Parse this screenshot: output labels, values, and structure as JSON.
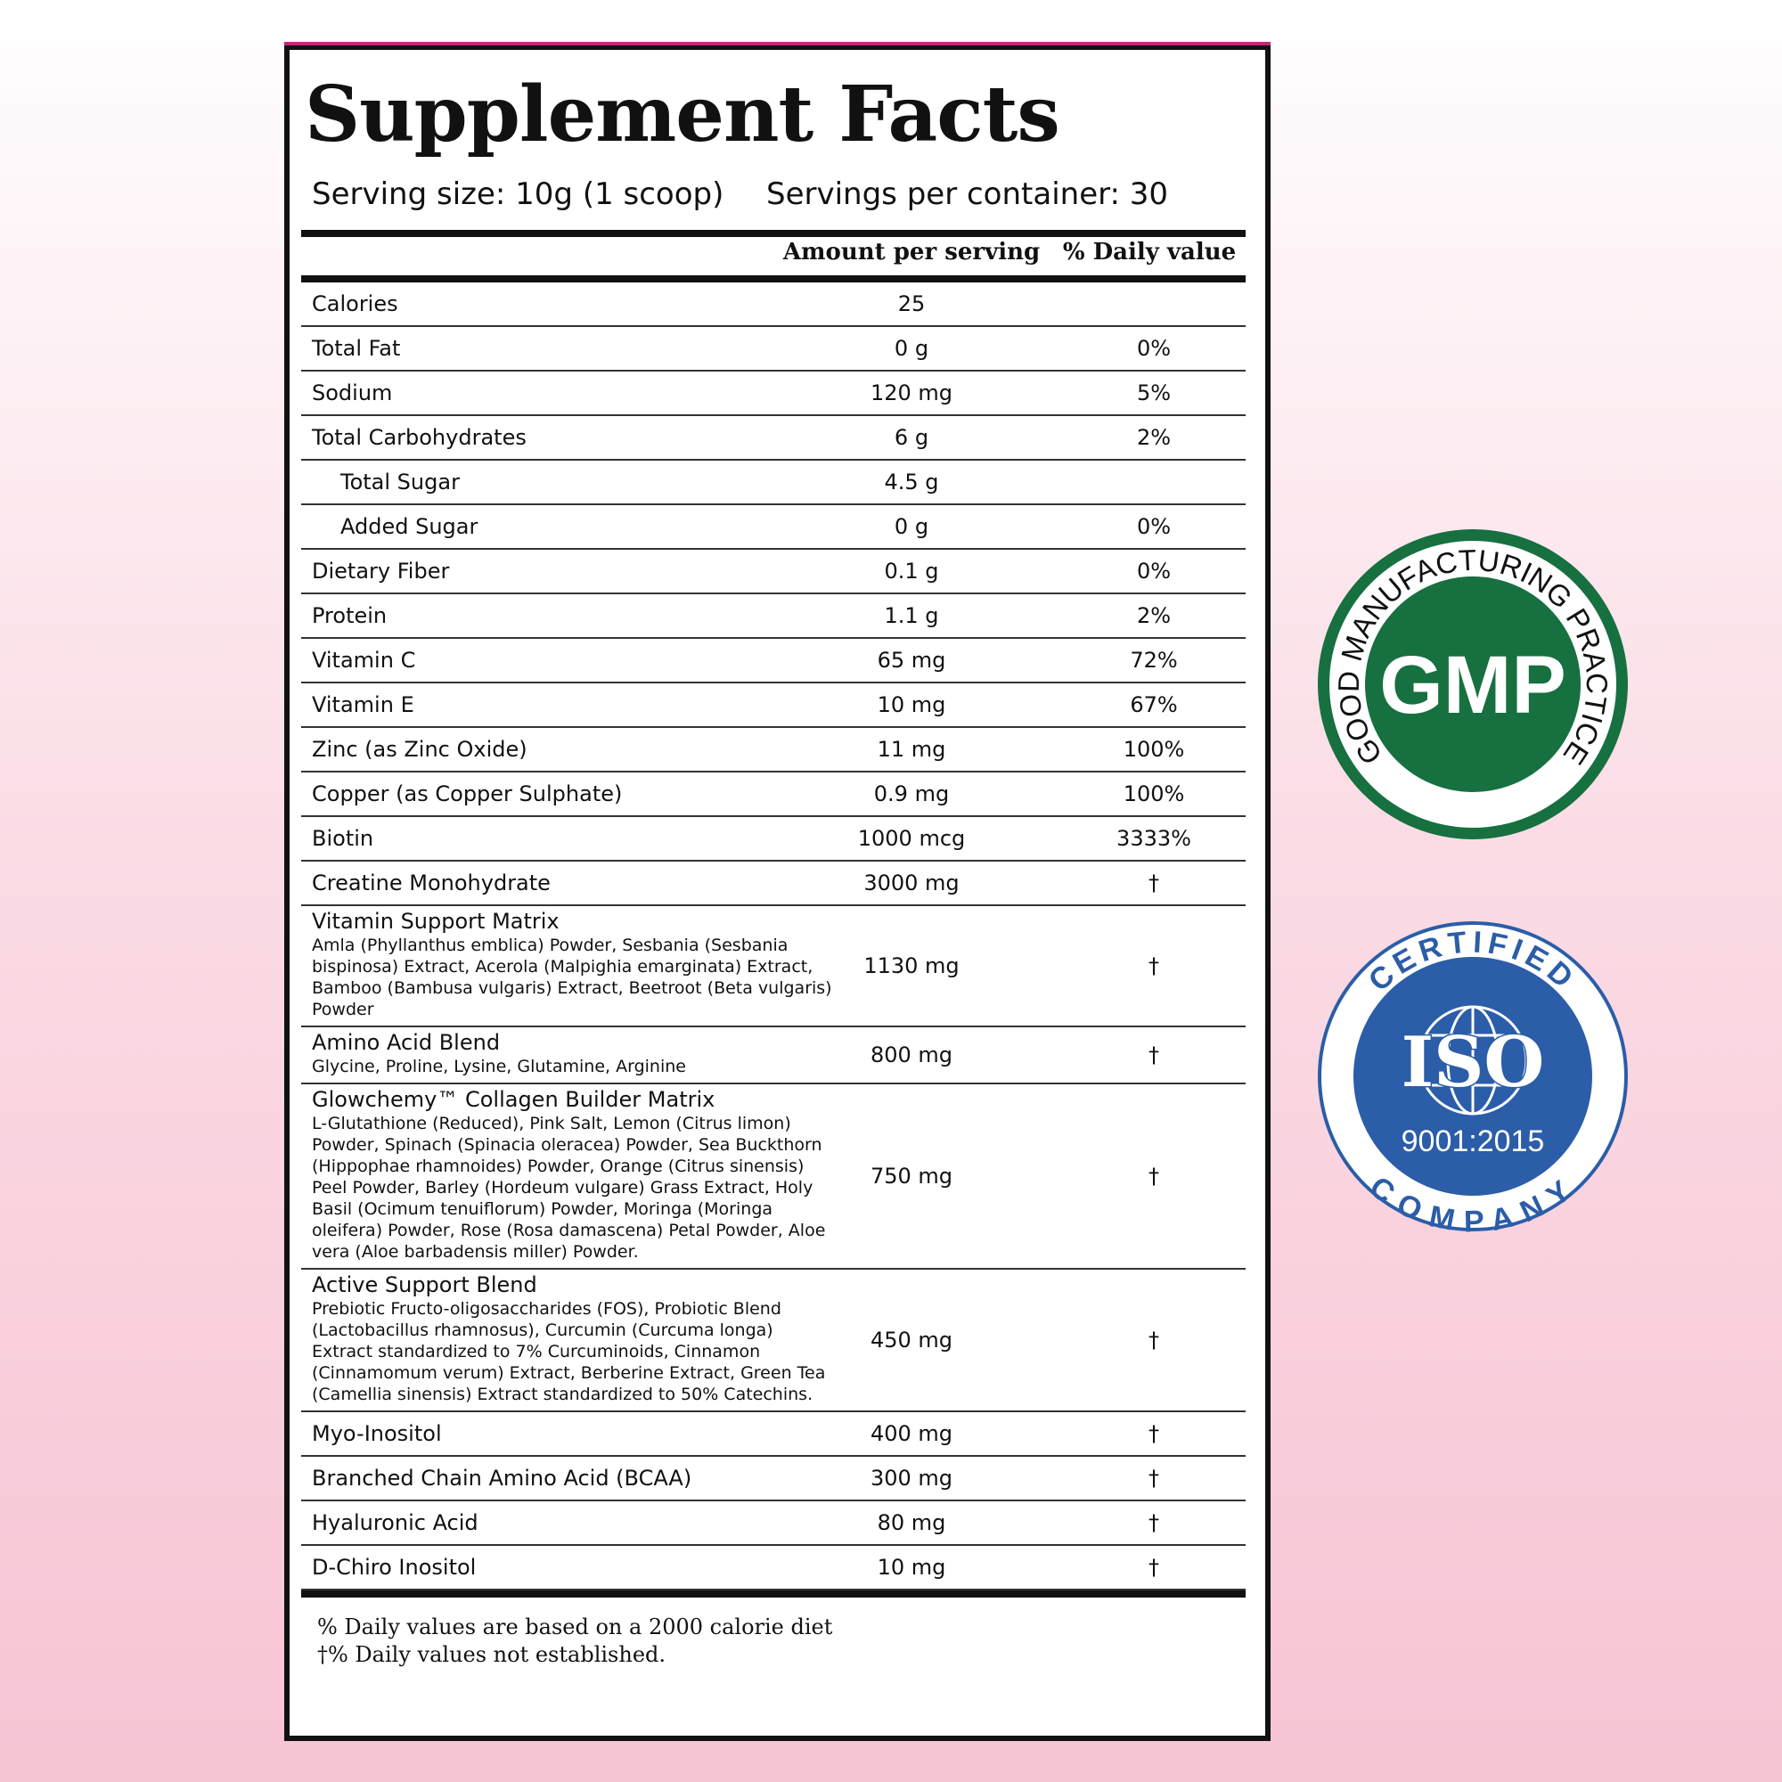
{
  "label": {
    "title": "Supplement Facts",
    "serving_size": "Serving size: 10g (1 scoop)",
    "servings_per_container": "Servings per container: 30",
    "headers": {
      "amount": "Amount per serving",
      "daily_value": "% Daily value"
    },
    "rows": [
      {
        "name": "Calories",
        "amount": "25",
        "daily_value": null
      },
      {
        "name": "Total Fat",
        "amount": "0 g",
        "daily_value": "0%"
      },
      {
        "name": "Sodium",
        "amount": "120 mg",
        "daily_value": "5%"
      },
      {
        "name": "Total Carbohydrates",
        "amount": "6 g",
        "daily_value": "2%"
      },
      {
        "name": "Total Sugar",
        "amount": "4.5 g",
        "daily_value": null,
        "indent": true
      },
      {
        "name": "Added Sugar",
        "amount": "0 g",
        "daily_value": "0%",
        "indent": true
      },
      {
        "name": "Dietary Fiber",
        "amount": "0.1 g",
        "daily_value": "0%"
      },
      {
        "name": "Protein",
        "amount": "1.1 g",
        "daily_value": "2%"
      },
      {
        "name": "Vitamin C",
        "amount": "65 mg",
        "daily_value": "72%"
      },
      {
        "name": "Vitamin E",
        "amount": "10 mg",
        "daily_value": "67%"
      },
      {
        "name": "Zinc (as Zinc Oxide)",
        "amount": "11 mg",
        "daily_value": "100%"
      },
      {
        "name": "Copper (as Copper Sulphate)",
        "amount": "0.9 mg",
        "daily_value": "100%"
      },
      {
        "name": "Biotin",
        "amount": "1000 mcg",
        "daily_value": "3333%"
      },
      {
        "name": "Creatine Monohydrate",
        "amount": "3000 mg",
        "daily_value": "†"
      },
      {
        "name": "Vitamin Support Matrix",
        "description": "Amla (Phyllanthus emblica) Powder, Sesbania (Sesbania bispinosa) Extract, Acerola (Malpighia emarginata) Extract, Bamboo (Bambusa vulgaris) Extract, Beetroot (Beta vulgaris) Powder",
        "amount": "1130 mg",
        "daily_value": "†"
      },
      {
        "name": "Amino Acid Blend",
        "description": "Glycine, Proline, Lysine, Glutamine, Arginine",
        "amount": "800 mg",
        "daily_value": "†"
      },
      {
        "name": "Glowchemy™ Collagen Builder Matrix",
        "description": "L-Glutathione (Reduced), Pink Salt, Lemon (Citrus limon) Powder, Spinach (Spinacia oleracea) Powder, Sea Buckthorn (Hippophae rhamnoides) Powder, Orange (Citrus sinensis) Peel Powder, Barley (Hordeum vulgare) Grass Extract, Holy Basil (Ocimum tenuiflorum) Powder, Moringa (Moringa oleifera) Powder, Rose (Rosa damascena) Petal Powder, Aloe vera (Aloe barbadensis miller) Powder.",
        "amount": "750 mg",
        "daily_value": "†"
      },
      {
        "name": "Active Support Blend",
        "description": "Prebiotic Fructo-oligosaccharides (FOS), Probiotic Blend (Lactobacillus rhamnosus), Curcumin (Curcuma longa) Extract standardized to 7% Curcuminoids, Cinnamon (Cinnamomum verum) Extract, Berberine Extract, Green Tea (Camellia sinensis) Extract standardized to 50% Catechins.",
        "amount": "450 mg",
        "daily_value": "†"
      },
      {
        "name": "Myo-Inositol",
        "amount": "400 mg",
        "daily_value": "†"
      },
      {
        "name": "Branched Chain Amino Acid (BCAA)",
        "amount": "300 mg",
        "daily_value": "†"
      },
      {
        "name": "Hyaluronic Acid",
        "amount": "80 mg",
        "daily_value": "†"
      },
      {
        "name": "D-Chiro Inositol",
        "amount": "10 mg",
        "daily_value": "†"
      }
    ],
    "footnotes": [
      "% Daily values are based on a 2000 calorie diet",
      "†% Daily values not established."
    ]
  },
  "badges": {
    "gmp": {
      "text": "GMP",
      "ring_text": "GOOD MANUFACTURING PRACTICE"
    },
    "iso": {
      "top_text": "CERTIFIED",
      "text": "ISO",
      "standard": "9001:2015",
      "bottom_text": "COMPANY"
    }
  }
}
